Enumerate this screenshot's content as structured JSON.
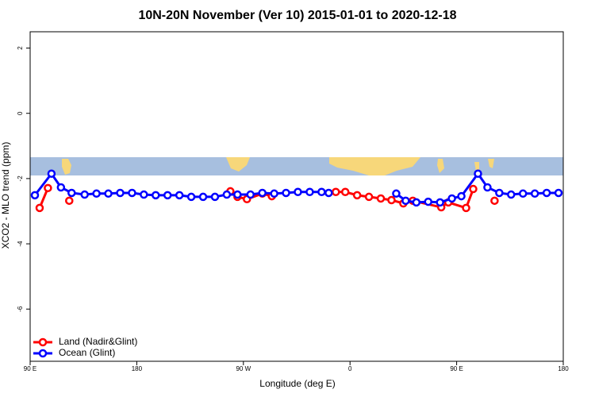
{
  "chart_data": {
    "type": "line",
    "title": "10N-20N November (Ver 10)   2015-01-01 to 2020-12-18",
    "x_label": "Longitude (deg E)",
    "y_label": "XCO2 - MLO trend (ppm)",
    "xlim": [
      90,
      540
    ],
    "ylim": [
      -7.6,
      2.5
    ],
    "xticks": [
      {
        "value": 90,
        "label": "90 E"
      },
      180,
      {
        "value": 270,
        "label": "90 W"
      },
      {
        "value": 360,
        "label": "0"
      },
      {
        "value": 450,
        "label": "90 E"
      },
      {
        "value": 540,
        "label": "180"
      }
    ],
    "yticks": [
      2,
      0,
      -2,
      -4,
      -6
    ],
    "legend": "bottom-left",
    "series": [
      {
        "name": "Land (Nadir&Glint)",
        "color": "#ff0000",
        "x": [
          98,
          105,
          null,
          123,
          null,
          259,
          265,
          273,
          286,
          294,
          null,
          348,
          356,
          366,
          376,
          386,
          395,
          405,
          413,
          437,
          443,
          458,
          464,
          null,
          482
        ],
        "values": [
          -2.9,
          -2.29,
          null,
          -2.68,
          null,
          -2.39,
          -2.56,
          -2.63,
          -2.46,
          -2.54,
          null,
          -2.41,
          -2.41,
          -2.51,
          -2.56,
          -2.61,
          -2.66,
          -2.76,
          -2.68,
          -2.88,
          -2.73,
          -2.9,
          -2.32,
          null,
          -2.68
        ]
      },
      {
        "name": "Ocean (Glint)",
        "color": "#0000ff",
        "x": [
          94,
          108,
          116,
          125,
          136,
          146,
          156,
          166,
          176,
          186,
          196,
          206,
          216,
          226,
          236,
          246,
          256,
          265,
          276,
          286,
          296,
          306,
          316,
          326,
          336,
          342,
          null,
          399,
          407,
          416,
          426,
          436,
          446,
          454,
          468,
          476,
          486,
          496,
          506,
          516,
          526,
          536
        ],
        "values": [
          -2.51,
          -1.85,
          -2.27,
          -2.44,
          -2.49,
          -2.46,
          -2.46,
          -2.44,
          -2.44,
          -2.49,
          -2.51,
          -2.51,
          -2.51,
          -2.56,
          -2.56,
          -2.56,
          -2.49,
          -2.49,
          -2.49,
          -2.44,
          -2.46,
          -2.44,
          -2.41,
          -2.41,
          -2.41,
          -2.44,
          null,
          -2.46,
          -2.68,
          -2.73,
          -2.71,
          -2.73,
          -2.61,
          -2.54,
          -1.85,
          -2.27,
          -2.44,
          -2.49,
          -2.46,
          -2.46,
          -2.44,
          -2.44
        ]
      }
    ]
  }
}
